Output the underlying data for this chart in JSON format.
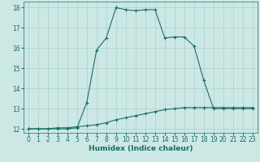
{
  "title": "",
  "xlabel": "Humidex (Indice chaleur)",
  "ylabel": "",
  "background_color": "#cce8e5",
  "line_color": "#1a6e64",
  "grid_color": "#aacfcc",
  "xlim": [
    -0.5,
    23.5
  ],
  "ylim": [
    11.8,
    18.3
  ],
  "xticks": [
    0,
    1,
    2,
    3,
    4,
    5,
    6,
    7,
    8,
    9,
    10,
    11,
    12,
    13,
    14,
    15,
    16,
    17,
    18,
    19,
    20,
    21,
    22,
    23
  ],
  "yticks": [
    12,
    13,
    14,
    15,
    16,
    17,
    18
  ],
  "line1_x": [
    0,
    1,
    2,
    3,
    4,
    5,
    6,
    7,
    8,
    9,
    10,
    11,
    12,
    13,
    14,
    15,
    16,
    17,
    18,
    19,
    20,
    21,
    22,
    23
  ],
  "line1_y": [
    12.0,
    12.0,
    12.0,
    12.0,
    12.0,
    12.05,
    13.3,
    15.9,
    16.5,
    18.0,
    17.9,
    17.85,
    17.9,
    17.9,
    16.5,
    16.55,
    16.55,
    16.1,
    14.4,
    13.0,
    13.0,
    13.0,
    13.0,
    13.0
  ],
  "line2_x": [
    0,
    1,
    2,
    3,
    4,
    5,
    6,
    7,
    8,
    9,
    10,
    11,
    12,
    13,
    14,
    15,
    16,
    17,
    18,
    19,
    20,
    21,
    22,
    23
  ],
  "line2_y": [
    12.0,
    12.0,
    12.0,
    12.05,
    12.05,
    12.1,
    12.15,
    12.2,
    12.3,
    12.45,
    12.55,
    12.65,
    12.75,
    12.85,
    12.95,
    13.0,
    13.05,
    13.05,
    13.05,
    13.05,
    13.05,
    13.05,
    13.05,
    13.05
  ],
  "marker": "+",
  "markersize": 3,
  "markeredgewidth": 0.8,
  "linewidth": 0.8,
  "tick_fontsize": 5.5,
  "xlabel_fontsize": 6.5
}
